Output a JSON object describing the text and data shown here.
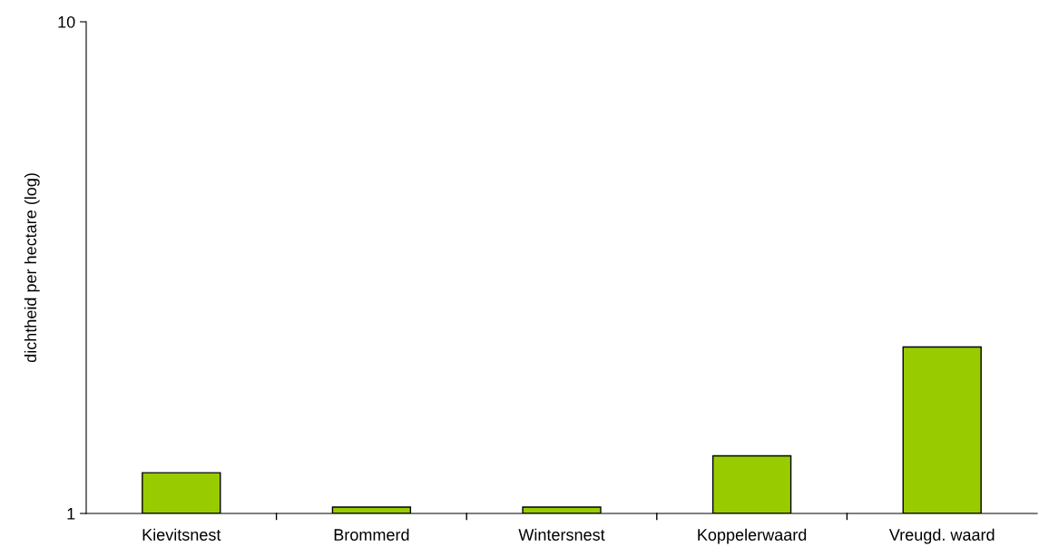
{
  "chart_data": {
    "type": "bar",
    "ylabel": "dichtheid per hectare (log)",
    "categories": [
      "Kievitsnest",
      "Brommerd",
      "Wintersnest",
      "Koppelerwaard",
      "Vreugd. waard"
    ],
    "values": [
      1.21,
      1.03,
      1.03,
      1.31,
      2.18
    ],
    "color": "#99cc00",
    "log": true,
    "ylim": [
      1,
      10
    ],
    "yticks": [
      1,
      10
    ],
    "grid": false
  }
}
